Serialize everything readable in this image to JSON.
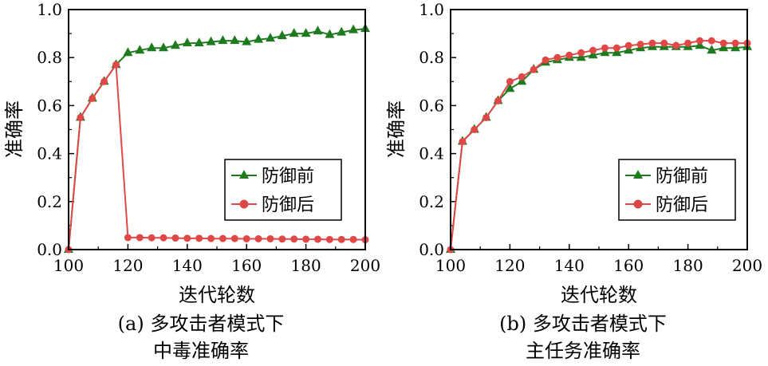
{
  "chart_data": [
    {
      "type": "line",
      "xlabel": "迭代轮数",
      "ylabel": "准确率",
      "caption_line1": "(a) 多攻击者模式下",
      "caption_line2": "中毒准确率",
      "xlim": [
        100,
        200
      ],
      "ylim": [
        0,
        1.0
      ],
      "xticks": [
        "100",
        "120",
        "140",
        "160",
        "180",
        "200"
      ],
      "yticks": [
        "0.0",
        "0.2",
        "0.4",
        "0.6",
        "0.8",
        "1.0"
      ],
      "legend_position": "center-right",
      "series": [
        {
          "name": "防御前",
          "color": "#1f7a1f",
          "marker": "triangle",
          "x": [
            100,
            104,
            108,
            112,
            116,
            120,
            124,
            128,
            132,
            136,
            140,
            144,
            148,
            152,
            156,
            160,
            164,
            168,
            172,
            176,
            180,
            184,
            188,
            192,
            196,
            200
          ],
          "y": [
            0.0,
            0.55,
            0.63,
            0.7,
            0.77,
            0.82,
            0.83,
            0.84,
            0.84,
            0.85,
            0.86,
            0.86,
            0.865,
            0.87,
            0.87,
            0.865,
            0.875,
            0.88,
            0.89,
            0.9,
            0.9,
            0.91,
            0.895,
            0.905,
            0.915,
            0.92
          ]
        },
        {
          "name": "防御后",
          "color": "#e04848",
          "marker": "circle",
          "x": [
            100,
            104,
            108,
            112,
            116,
            120,
            124,
            128,
            132,
            136,
            140,
            144,
            148,
            152,
            156,
            160,
            164,
            168,
            172,
            176,
            180,
            184,
            188,
            192,
            196,
            200
          ],
          "y": [
            0.0,
            0.55,
            0.63,
            0.7,
            0.77,
            0.05,
            0.05,
            0.049,
            0.049,
            0.048,
            0.047,
            0.047,
            0.046,
            0.046,
            0.046,
            0.045,
            0.045,
            0.045,
            0.044,
            0.044,
            0.043,
            0.043,
            0.042,
            0.042,
            0.042,
            0.041
          ]
        }
      ]
    },
    {
      "type": "line",
      "xlabel": "迭代轮数",
      "ylabel": "准确率",
      "caption_line1": "(b) 多攻击者模式下",
      "caption_line2": "主任务准确率",
      "xlim": [
        100,
        200
      ],
      "ylim": [
        0,
        1.0
      ],
      "xticks": [
        "100",
        "120",
        "140",
        "160",
        "180",
        "200"
      ],
      "yticks": [
        "0.0",
        "0.2",
        "0.4",
        "0.6",
        "0.8",
        "1.0"
      ],
      "legend_position": "center-right",
      "series": [
        {
          "name": "防御前",
          "color": "#1f7a1f",
          "marker": "triangle",
          "x": [
            100,
            104,
            108,
            112,
            116,
            120,
            124,
            128,
            132,
            136,
            140,
            144,
            148,
            152,
            156,
            160,
            164,
            168,
            172,
            176,
            180,
            184,
            188,
            192,
            196,
            200
          ],
          "y": [
            0.0,
            0.45,
            0.5,
            0.55,
            0.62,
            0.67,
            0.7,
            0.75,
            0.78,
            0.79,
            0.8,
            0.8,
            0.81,
            0.82,
            0.82,
            0.83,
            0.84,
            0.845,
            0.845,
            0.845,
            0.845,
            0.85,
            0.83,
            0.84,
            0.84,
            0.845
          ]
        },
        {
          "name": "防御后",
          "color": "#e04848",
          "marker": "circle",
          "x": [
            100,
            104,
            108,
            112,
            116,
            120,
            124,
            128,
            132,
            136,
            140,
            144,
            148,
            152,
            156,
            160,
            164,
            168,
            172,
            176,
            180,
            184,
            188,
            192,
            196,
            200
          ],
          "y": [
            0.0,
            0.45,
            0.5,
            0.55,
            0.62,
            0.7,
            0.72,
            0.75,
            0.79,
            0.8,
            0.81,
            0.82,
            0.83,
            0.84,
            0.84,
            0.85,
            0.855,
            0.86,
            0.86,
            0.85,
            0.86,
            0.87,
            0.87,
            0.86,
            0.86,
            0.86
          ]
        }
      ]
    }
  ]
}
